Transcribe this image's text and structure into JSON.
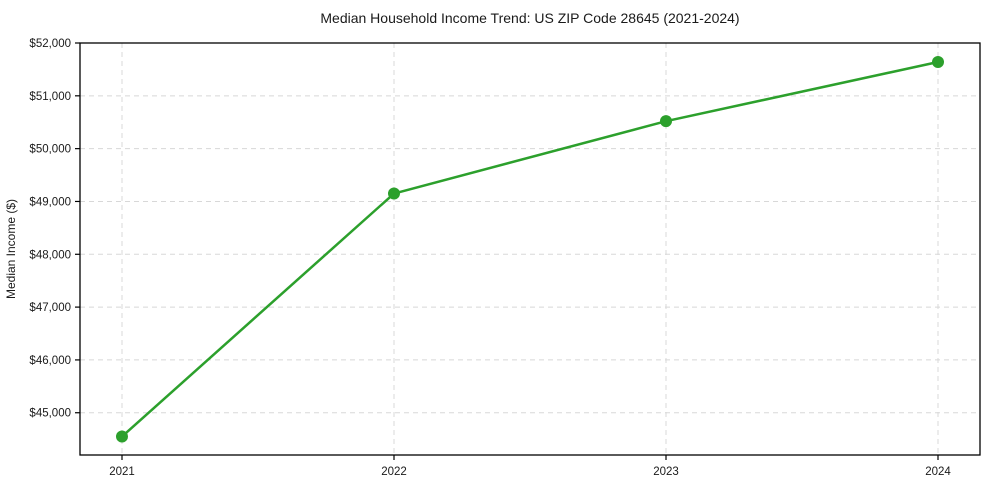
{
  "chart_data": {
    "type": "line",
    "title": "Median Household Income Trend: US ZIP Code 28645 (2021-2024)",
    "xlabel": "",
    "ylabel": "Median Income ($)",
    "categories": [
      "2021",
      "2022",
      "2023",
      "2024"
    ],
    "series": [
      {
        "name": "Median household income",
        "values": [
          44550,
          49150,
          50520,
          51640
        ],
        "color": "#2ca02c"
      }
    ],
    "ylim": [
      44200,
      52000
    ],
    "yticks": [
      45000,
      46000,
      47000,
      48000,
      49000,
      50000,
      51000,
      52000
    ],
    "ytick_labels": [
      "$45,000",
      "$46,000",
      "$47,000",
      "$48,000",
      "$49,000",
      "$50,000",
      "$51,000",
      "$52,000"
    ],
    "grid": "both-dashed",
    "grid_color": "#d8d8d8",
    "axis_color": "#000000",
    "text_color": "#1a1a1a",
    "background": "#ffffff",
    "legend": "none",
    "marker": "circle"
  }
}
